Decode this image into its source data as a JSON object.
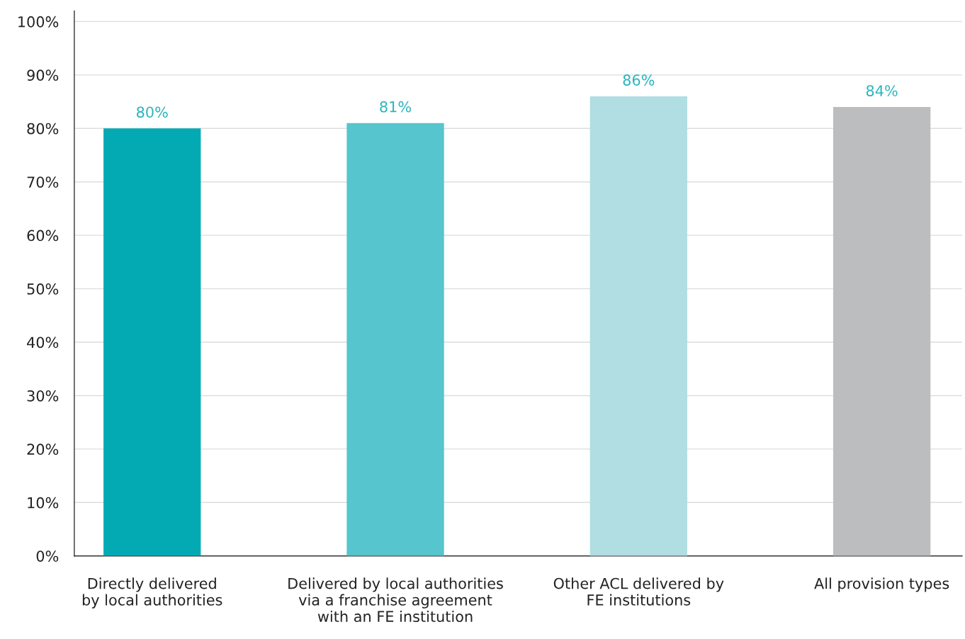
{
  "chart_data": {
    "type": "bar",
    "categories": [
      "Directly delivered\nby local authorities",
      "Delivered by local authorities\nvia a franchise agreement\nwith an FE institution",
      "Other ACL delivered by\nFE institutions",
      "All provision types"
    ],
    "values": [
      80,
      81,
      86,
      84
    ],
    "colors": [
      "#03aab4",
      "#56c5cd",
      "#b0dee2",
      "#bcbdbf"
    ],
    "value_labels": [
      "80%",
      "81%",
      "86%",
      "84%"
    ],
    "ylim": [
      0,
      102
    ],
    "yticks": [
      {
        "value": 0,
        "label": "0%"
      },
      {
        "value": 10,
        "label": "10%"
      },
      {
        "value": 20,
        "label": "20%"
      },
      {
        "value": 30,
        "label": "30%"
      },
      {
        "value": 40,
        "label": "40%"
      },
      {
        "value": 50,
        "label": "50%"
      },
      {
        "value": 60,
        "label": "60%"
      },
      {
        "value": 70,
        "label": "70%"
      },
      {
        "value": 80,
        "label": "80%"
      },
      {
        "value": 90,
        "label": "90%"
      },
      {
        "value": 100,
        "label": "100%"
      }
    ],
    "grid": "y",
    "legend": false
  }
}
